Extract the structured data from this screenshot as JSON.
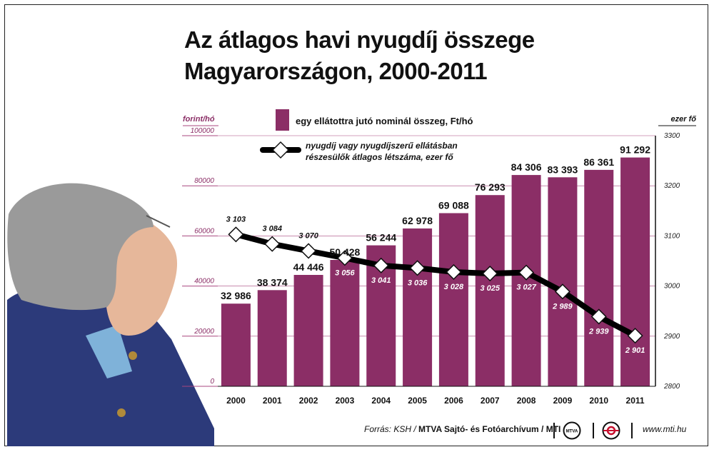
{
  "title_line1": "Az átlagos havi nyugdíj összege",
  "title_line2": "Magyarországon, 2000-2011",
  "chart_data": {
    "type": "bar+line",
    "categories": [
      "2000",
      "2001",
      "2002",
      "2003",
      "2004",
      "2005",
      "2006",
      "2007",
      "2008",
      "2009",
      "2010",
      "2011"
    ],
    "left_axis": {
      "unit_label": "forint/hó",
      "ylim": [
        0,
        100000
      ],
      "ticks": [
        "0",
        "20000",
        "40000",
        "60000",
        "80000",
        "100000"
      ],
      "tick_values": [
        0,
        20000,
        40000,
        60000,
        80000,
        100000
      ]
    },
    "right_axis": {
      "unit_label": "ezer fő",
      "ylim": [
        2800,
        3300
      ],
      "ticks": [
        "2800",
        "2900",
        "3000",
        "3100",
        "3200",
        "3300"
      ],
      "tick_values": [
        2800,
        2900,
        3000,
        3100,
        3200,
        3300
      ]
    },
    "bars": {
      "name": "egy ellátottra jutó nominál összeg, Ft/hó",
      "values": [
        32986,
        38374,
        44446,
        50428,
        56244,
        62978,
        69088,
        76293,
        84306,
        83393,
        86361,
        91292
      ],
      "labels": [
        "32 986",
        "38 374",
        "44 446",
        "50 428",
        "56 244",
        "62 978",
        "69 088",
        "76 293",
        "84 306",
        "83 393",
        "86 361",
        "91 292"
      ],
      "color": "#8b2e66"
    },
    "line": {
      "name_line1": "nyugdíj vagy nyugdíjszerű ellátásban",
      "name_line2": "részesülők átlagos létszáma, ezer fő",
      "values": [
        3103,
        3084,
        3070,
        3056,
        3041,
        3036,
        3028,
        3025,
        3027,
        2989,
        2939,
        2901
      ],
      "labels": [
        "3 103",
        "3 084",
        "3 070",
        "3 056",
        "3 041",
        "3 036",
        "3 028",
        "3 025",
        "3 027",
        "2 989",
        "2 939",
        "2 901"
      ],
      "color": "#000000"
    },
    "grid": true,
    "legend_position": "top"
  },
  "footer": {
    "source_prefix": "Forrás: KSH /",
    "source_bold": "MTVA Sajtó- és Fotóarchívum / MTI",
    "logo1_text": "MTVA",
    "url": "www.mti.hu"
  },
  "colors": {
    "bar": "#8b2e66",
    "grid": "#a8477f",
    "axis_text": "#8b2e66",
    "hair": "#9a9a9a",
    "coat": "#2c3a7a",
    "skin": "#e6b79a"
  }
}
